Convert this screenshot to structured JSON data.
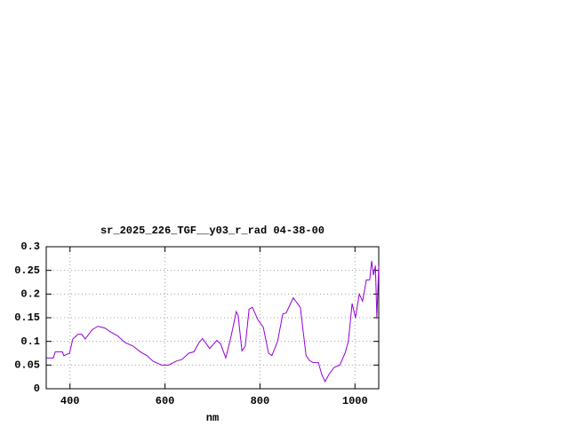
{
  "chart_data": {
    "type": "line",
    "title": "sr_2025_226_TGF__y03_r_rad 04-38-00",
    "x_label": "nm",
    "x": [
      350,
      365,
      369,
      384,
      387,
      399,
      406,
      417,
      425,
      432,
      447,
      459,
      474,
      485,
      500,
      515,
      533,
      548,
      562,
      575,
      586,
      593,
      608,
      623,
      636,
      650,
      661,
      672,
      679,
      687,
      694,
      709,
      717,
      728,
      739,
      750,
      754,
      762,
      769,
      777,
      784,
      796,
      807,
      818,
      825,
      837,
      848,
      855,
      870,
      885,
      897,
      904,
      912,
      923,
      930,
      937,
      945,
      956,
      968,
      979,
      986,
      994,
      1001,
      1009,
      1016,
      1024,
      1031,
      1035,
      1039,
      1043,
      1046,
      1050
    ],
    "series": [
      {
        "color": "#9400d3",
        "values": [
          0.065,
          0.065,
          0.078,
          0.078,
          0.07,
          0.075,
          0.105,
          0.115,
          0.115,
          0.105,
          0.125,
          0.132,
          0.128,
          0.12,
          0.112,
          0.098,
          0.09,
          0.078,
          0.07,
          0.058,
          0.053,
          0.05,
          0.05,
          0.058,
          0.062,
          0.075,
          0.078,
          0.098,
          0.106,
          0.095,
          0.085,
          0.102,
          0.095,
          0.065,
          0.11,
          0.163,
          0.155,
          0.08,
          0.09,
          0.168,
          0.172,
          0.145,
          0.13,
          0.075,
          0.07,
          0.1,
          0.158,
          0.16,
          0.192,
          0.172,
          0.07,
          0.06,
          0.055,
          0.055,
          0.03,
          0.015,
          0.03,
          0.045,
          0.05,
          0.075,
          0.1,
          0.18,
          0.15,
          0.2,
          0.185,
          0.23,
          0.23,
          0.27,
          0.24,
          0.26,
          0.15,
          0.26
        ]
      }
    ],
    "xlim": [
      350,
      1050
    ],
    "xticks": [
      400,
      600,
      800,
      1000
    ],
    "ylim": [
      0,
      0.3
    ],
    "yticks": [
      0,
      0.05,
      0.1,
      0.15,
      0.2,
      0.25,
      0.3
    ],
    "grid": true
  }
}
